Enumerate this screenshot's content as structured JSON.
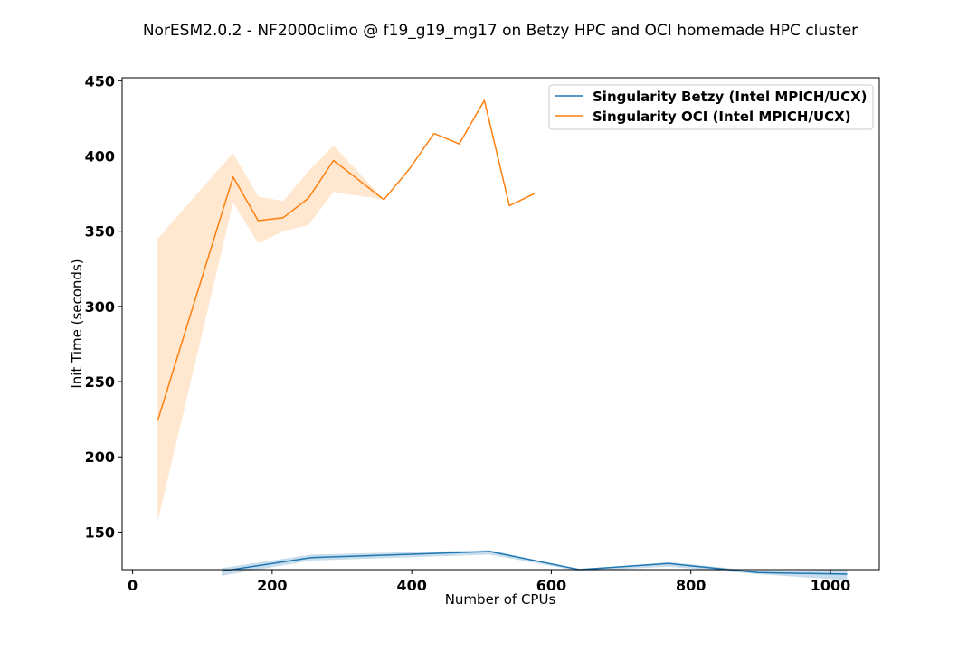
{
  "chart_data": {
    "type": "line",
    "title": "NorESM2.0.2 - NF2000climo @ f19_g19_mg17 on Betzy HPC and OCI homemade HPC cluster",
    "xlabel": "Number of CPUs",
    "ylabel": "Init Time (seconds)",
    "xlim": [
      -15,
      1070
    ],
    "ylim": [
      125,
      452
    ],
    "xticks": [
      0,
      200,
      400,
      600,
      800,
      1000
    ],
    "yticks": [
      150,
      200,
      250,
      300,
      350,
      400,
      450
    ],
    "grid": false,
    "legend_position": "top-right",
    "series": [
      {
        "name": "Singularity Betzy (Intel MPICH/UCX)",
        "color": "#1f77b4",
        "band_color": "#1f77b4",
        "x": [
          128,
          256,
          512,
          640,
          768,
          896,
          1024
        ],
        "y": [
          124,
          133,
          137,
          125,
          129,
          123,
          122
        ],
        "lower": [
          121,
          131,
          135,
          124,
          127,
          122,
          118
        ],
        "upper": [
          126,
          135,
          138,
          125,
          130,
          124,
          125
        ]
      },
      {
        "name": "Singularity OCI (Intel MPICH/UCX)",
        "color": "#ff7f0e",
        "band_color": "#ffbb78",
        "x": [
          36,
          144,
          180,
          216,
          252,
          288,
          360,
          396,
          432,
          468,
          504,
          540,
          576
        ],
        "y": [
          224,
          386,
          357,
          359,
          372,
          397,
          371,
          391,
          415,
          408,
          437,
          367,
          375
        ],
        "lower": [
          157,
          369,
          342,
          350,
          354,
          376,
          371,
          391,
          415,
          408,
          437,
          367,
          375
        ],
        "upper": [
          345,
          402,
          373,
          370,
          390,
          407,
          371,
          391,
          415,
          408,
          437,
          367,
          375
        ]
      }
    ]
  }
}
